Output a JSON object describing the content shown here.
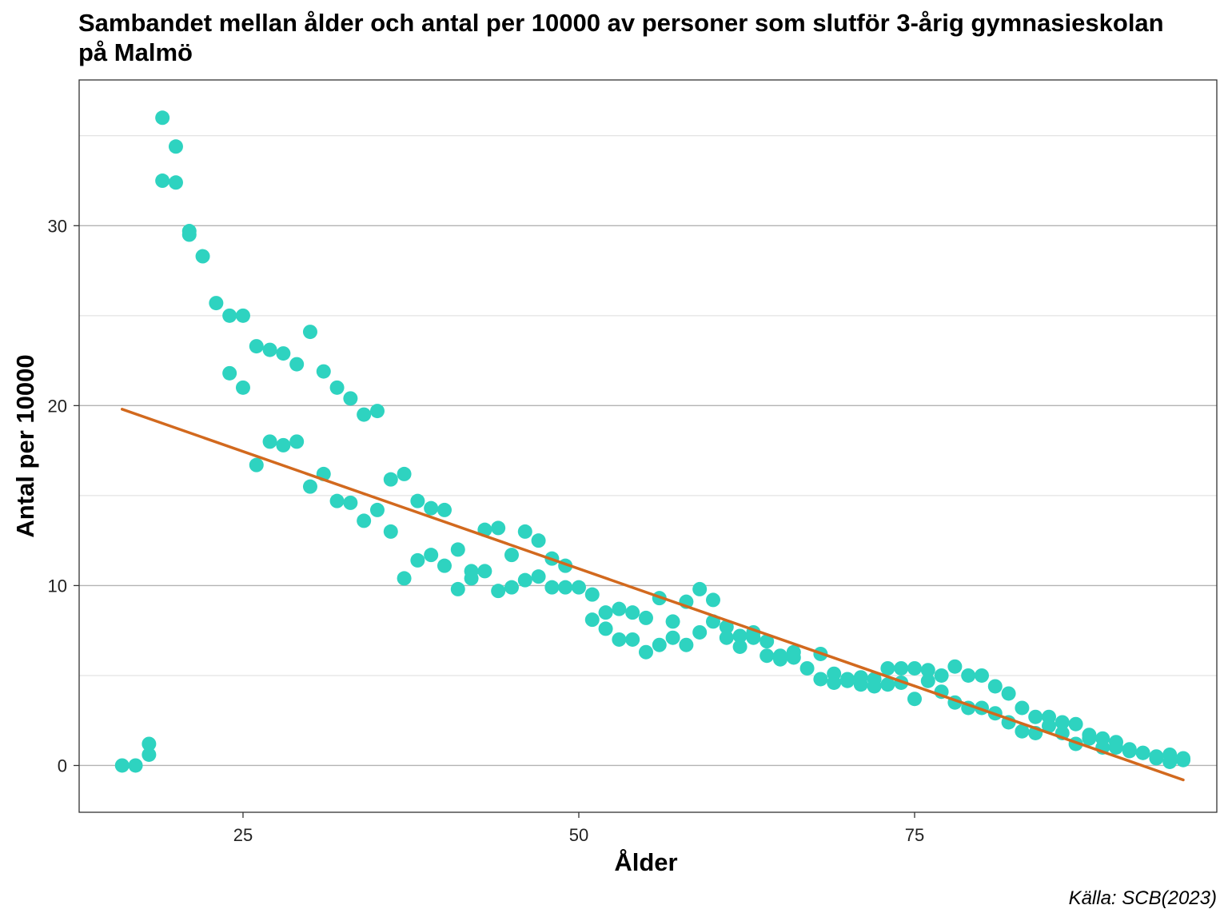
{
  "chart_data": {
    "type": "scatter",
    "title": "Sambandet mellan ålder och antal per 10000 av personer som slutför 3-årig gymnasieskolan på Malmö",
    "xlabel": "Ålder",
    "ylabel": "Antal per 10000",
    "caption": "Källa: SCB(2023)",
    "xlim": [
      12.8,
      97.5
    ],
    "ylim": [
      -2.6,
      38.1
    ],
    "x_ticks": [
      25,
      50,
      75
    ],
    "y_ticks": [
      0,
      10,
      20,
      30
    ],
    "grid": true,
    "point_color": "#2ED3C0",
    "trend_color": "#D2691E",
    "points": [
      [
        16,
        0.0
      ],
      [
        17,
        0.0
      ],
      [
        18,
        0.6
      ],
      [
        18,
        1.2
      ],
      [
        19,
        32.5
      ],
      [
        19,
        36.0
      ],
      [
        20,
        34.4
      ],
      [
        20,
        32.4
      ],
      [
        21,
        29.7
      ],
      [
        21,
        29.5
      ],
      [
        22,
        28.3
      ],
      [
        23,
        25.7
      ],
      [
        24,
        25.0
      ],
      [
        24,
        21.8
      ],
      [
        25,
        25.0
      ],
      [
        25,
        21.0
      ],
      [
        26,
        23.3
      ],
      [
        26,
        16.7
      ],
      [
        27,
        23.1
      ],
      [
        27,
        18.0
      ],
      [
        28,
        22.9
      ],
      [
        28,
        17.8
      ],
      [
        29,
        22.3
      ],
      [
        29,
        18.0
      ],
      [
        30,
        24.1
      ],
      [
        30,
        15.5
      ],
      [
        31,
        21.9
      ],
      [
        31,
        16.2
      ],
      [
        32,
        21.0
      ],
      [
        32,
        14.7
      ],
      [
        33,
        20.4
      ],
      [
        33,
        14.6
      ],
      [
        34,
        19.5
      ],
      [
        34,
        13.6
      ],
      [
        35,
        19.7
      ],
      [
        35,
        14.2
      ],
      [
        36,
        15.9
      ],
      [
        36,
        13.0
      ],
      [
        37,
        16.2
      ],
      [
        37,
        10.4
      ],
      [
        38,
        14.7
      ],
      [
        38,
        11.4
      ],
      [
        39,
        14.3
      ],
      [
        39,
        11.7
      ],
      [
        40,
        14.2
      ],
      [
        40,
        11.1
      ],
      [
        41,
        12.0
      ],
      [
        41,
        9.8
      ],
      [
        42,
        10.8
      ],
      [
        42,
        10.4
      ],
      [
        43,
        13.1
      ],
      [
        43,
        10.8
      ],
      [
        44,
        13.2
      ],
      [
        44,
        9.7
      ],
      [
        45,
        11.7
      ],
      [
        45,
        9.9
      ],
      [
        46,
        13.0
      ],
      [
        46,
        10.3
      ],
      [
        47,
        12.5
      ],
      [
        47,
        10.5
      ],
      [
        48,
        11.5
      ],
      [
        48,
        9.9
      ],
      [
        49,
        11.1
      ],
      [
        49,
        9.9
      ],
      [
        50,
        9.9
      ],
      [
        51,
        9.5
      ],
      [
        51,
        8.1
      ],
      [
        52,
        8.5
      ],
      [
        52,
        7.6
      ],
      [
        53,
        8.7
      ],
      [
        53,
        7.0
      ],
      [
        54,
        8.5
      ],
      [
        54,
        7.0
      ],
      [
        55,
        8.2
      ],
      [
        55,
        6.3
      ],
      [
        56,
        9.3
      ],
      [
        56,
        6.7
      ],
      [
        57,
        8.0
      ],
      [
        57,
        7.1
      ],
      [
        58,
        9.1
      ],
      [
        58,
        6.7
      ],
      [
        59,
        9.8
      ],
      [
        59,
        7.4
      ],
      [
        60,
        9.2
      ],
      [
        60,
        8.0
      ],
      [
        61,
        7.7
      ],
      [
        61,
        7.1
      ],
      [
        62,
        7.2
      ],
      [
        62,
        6.6
      ],
      [
        63,
        7.4
      ],
      [
        63,
        7.1
      ],
      [
        64,
        6.9
      ],
      [
        64,
        6.1
      ],
      [
        65,
        6.1
      ],
      [
        65,
        5.9
      ],
      [
        66,
        6.3
      ],
      [
        66,
        6.0
      ],
      [
        67,
        5.4
      ],
      [
        68,
        6.2
      ],
      [
        68,
        4.8
      ],
      [
        69,
        5.1
      ],
      [
        69,
        4.6
      ],
      [
        70,
        4.8
      ],
      [
        70,
        4.7
      ],
      [
        71,
        4.9
      ],
      [
        71,
        4.5
      ],
      [
        72,
        4.8
      ],
      [
        72,
        4.4
      ],
      [
        73,
        5.4
      ],
      [
        73,
        4.5
      ],
      [
        74,
        5.4
      ],
      [
        74,
        4.6
      ],
      [
        75,
        5.4
      ],
      [
        75,
        3.7
      ],
      [
        76,
        5.3
      ],
      [
        76,
        4.7
      ],
      [
        77,
        5.0
      ],
      [
        77,
        4.1
      ],
      [
        78,
        5.5
      ],
      [
        78,
        3.5
      ],
      [
        79,
        5.0
      ],
      [
        79,
        3.2
      ],
      [
        80,
        5.0
      ],
      [
        80,
        3.2
      ],
      [
        81,
        4.4
      ],
      [
        81,
        2.9
      ],
      [
        82,
        4.0
      ],
      [
        82,
        2.4
      ],
      [
        83,
        3.2
      ],
      [
        83,
        1.9
      ],
      [
        84,
        2.7
      ],
      [
        84,
        1.8
      ],
      [
        85,
        2.7
      ],
      [
        85,
        2.2
      ],
      [
        86,
        2.4
      ],
      [
        86,
        1.8
      ],
      [
        87,
        2.3
      ],
      [
        87,
        1.2
      ],
      [
        88,
        1.7
      ],
      [
        88,
        1.5
      ],
      [
        89,
        1.5
      ],
      [
        89,
        1.0
      ],
      [
        90,
        1.3
      ],
      [
        90,
        1.0
      ],
      [
        91,
        0.9
      ],
      [
        91,
        0.8
      ],
      [
        92,
        0.7
      ],
      [
        92,
        0.7
      ],
      [
        93,
        0.5
      ],
      [
        93,
        0.4
      ],
      [
        94,
        0.6
      ],
      [
        94,
        0.2
      ],
      [
        95,
        0.4
      ],
      [
        95,
        0.3
      ]
    ],
    "trend": {
      "x0": 16,
      "y0": 19.8,
      "x1": 95,
      "y1": -0.8
    }
  }
}
